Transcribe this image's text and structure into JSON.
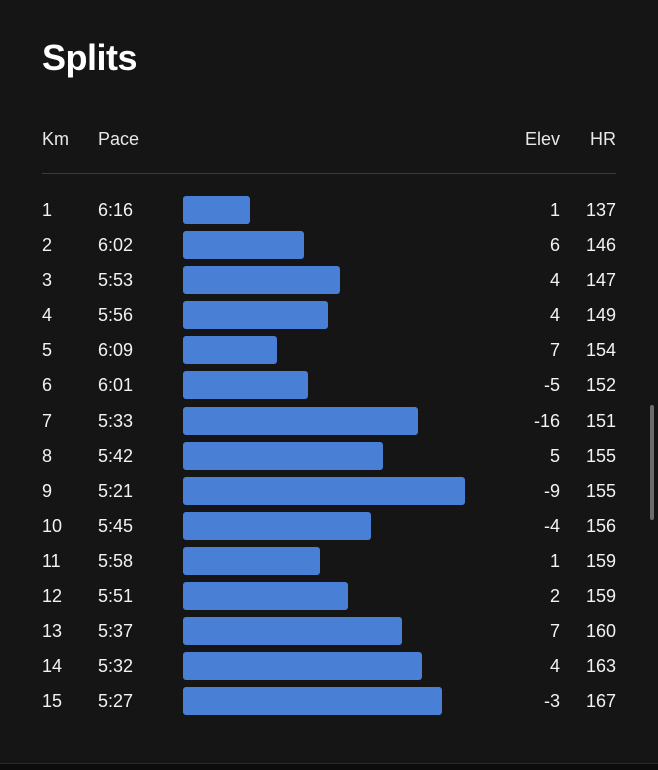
{
  "title": "Splits",
  "columns": {
    "km": "Km",
    "pace": "Pace",
    "elev": "Elev",
    "hr": "HR"
  },
  "accent_color": "#4a7fd6",
  "splits": [
    {
      "km": "1",
      "pace": "6:16",
      "elev": "1",
      "hr": "137",
      "pace_seconds": 376
    },
    {
      "km": "2",
      "pace": "6:02",
      "elev": "6",
      "hr": "146",
      "pace_seconds": 362
    },
    {
      "km": "3",
      "pace": "5:53",
      "elev": "4",
      "hr": "147",
      "pace_seconds": 353
    },
    {
      "km": "4",
      "pace": "5:56",
      "elev": "4",
      "hr": "149",
      "pace_seconds": 356
    },
    {
      "km": "5",
      "pace": "6:09",
      "elev": "7",
      "hr": "154",
      "pace_seconds": 369
    },
    {
      "km": "6",
      "pace": "6:01",
      "elev": "-5",
      "hr": "152",
      "pace_seconds": 361
    },
    {
      "km": "7",
      "pace": "5:33",
      "elev": "-16",
      "hr": "151",
      "pace_seconds": 333
    },
    {
      "km": "8",
      "pace": "5:42",
      "elev": "5",
      "hr": "155",
      "pace_seconds": 342
    },
    {
      "km": "9",
      "pace": "5:21",
      "elev": "-9",
      "hr": "155",
      "pace_seconds": 321
    },
    {
      "km": "10",
      "pace": "5:45",
      "elev": "-4",
      "hr": "156",
      "pace_seconds": 345
    },
    {
      "km": "11",
      "pace": "5:58",
      "elev": "1",
      "hr": "159",
      "pace_seconds": 358
    },
    {
      "km": "12",
      "pace": "5:51",
      "elev": "2",
      "hr": "159",
      "pace_seconds": 351
    },
    {
      "km": "13",
      "pace": "5:37",
      "elev": "7",
      "hr": "160",
      "pace_seconds": 337
    },
    {
      "km": "14",
      "pace": "5:32",
      "elev": "4",
      "hr": "163",
      "pace_seconds": 332
    },
    {
      "km": "15",
      "pace": "5:27",
      "elev": "-3",
      "hr": "167",
      "pace_seconds": 327
    }
  ]
}
